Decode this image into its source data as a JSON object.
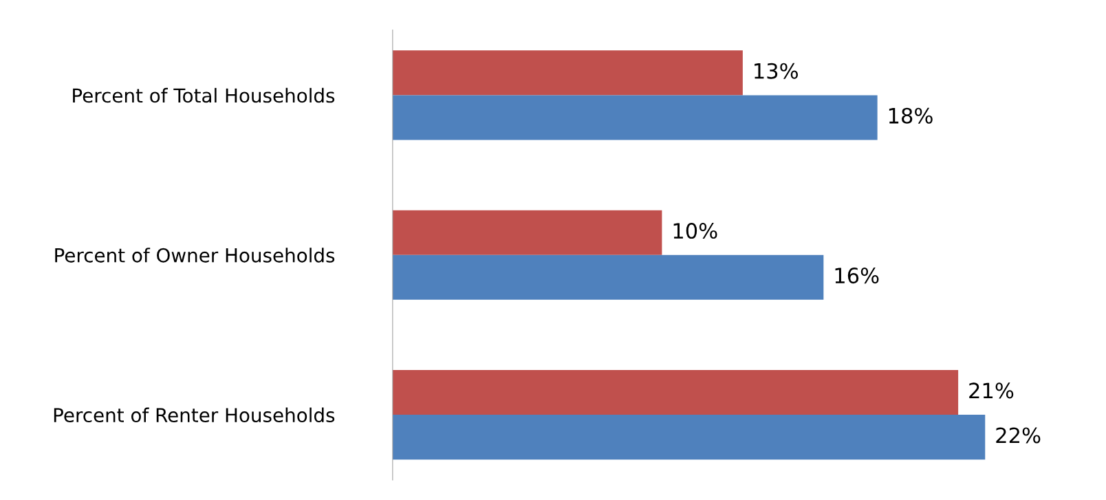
{
  "chart_data": {
    "type": "bar",
    "orientation": "horizontal",
    "categories": [
      "Percent of Total Households",
      "Percent of Owner Households",
      "Percent of Renter Households"
    ],
    "series": [
      {
        "color": "#c0504d",
        "values": [
          13,
          10,
          21
        ],
        "value_labels": [
          "13%",
          "10%",
          "21%"
        ]
      },
      {
        "color": "#4f81bd",
        "values": [
          18,
          16,
          22
        ],
        "value_labels": [
          "18%",
          "16%",
          "22%"
        ]
      }
    ],
    "grid": false,
    "legend": false
  }
}
